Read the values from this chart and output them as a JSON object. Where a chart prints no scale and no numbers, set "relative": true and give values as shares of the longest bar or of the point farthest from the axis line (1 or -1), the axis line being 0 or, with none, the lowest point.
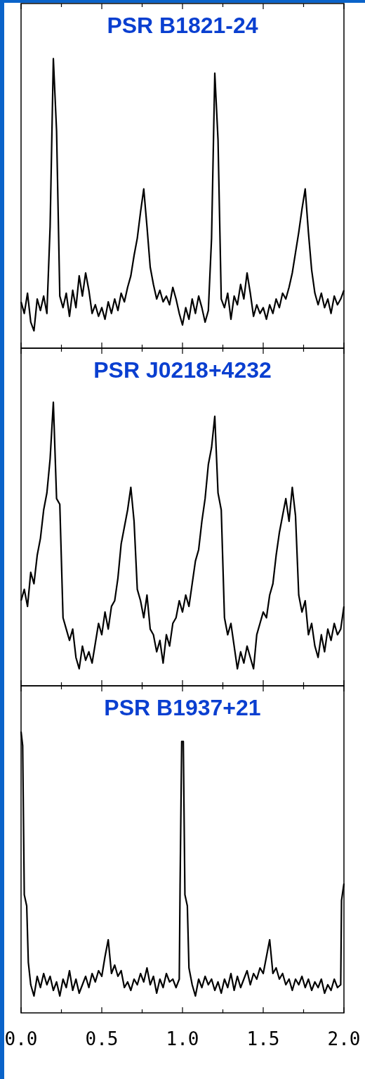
{
  "chart_data": [
    {
      "type": "line",
      "title": "PSR B1821-24",
      "relative": true,
      "xlim": [
        0,
        2
      ],
      "tick_labels": false,
      "xticks": [
        {
          "value": 0,
          "label": null
        },
        {
          "value": 0.25,
          "label": null
        },
        {
          "value": 0.5,
          "label": null
        },
        {
          "value": 0.75,
          "label": null
        },
        {
          "value": 1,
          "label": null
        },
        {
          "value": 1.25,
          "label": null
        },
        {
          "value": 1.5,
          "label": null
        },
        {
          "value": 1.75,
          "label": null
        },
        {
          "value": 2,
          "label": null
        }
      ],
      "x": [
        0,
        0.02,
        0.04,
        0.06,
        0.08,
        0.1,
        0.12,
        0.14,
        0.16,
        0.18,
        0.2,
        0.22,
        0.24,
        0.26,
        0.28,
        0.3,
        0.32,
        0.34,
        0.36,
        0.38,
        0.4,
        0.42,
        0.44,
        0.46,
        0.48,
        0.5,
        0.52,
        0.54,
        0.56,
        0.58,
        0.6,
        0.62,
        0.64,
        0.66,
        0.68,
        0.7,
        0.72,
        0.74,
        0.76,
        0.78,
        0.8,
        0.82,
        0.84,
        0.86,
        0.88,
        0.9,
        0.92,
        0.94,
        0.96,
        0.98,
        1,
        1.02,
        1.04,
        1.06,
        1.08,
        1.1,
        1.12,
        1.14,
        1.16,
        1.18,
        1.2,
        1.22,
        1.24,
        1.26,
        1.28,
        1.3,
        1.32,
        1.34,
        1.36,
        1.38,
        1.4,
        1.42,
        1.44,
        1.46,
        1.48,
        1.5,
        1.52,
        1.54,
        1.56,
        1.58,
        1.6,
        1.62,
        1.64,
        1.66,
        1.68,
        1.7,
        1.72,
        1.74,
        1.76,
        1.78,
        1.8,
        1.82,
        1.84,
        1.86,
        1.88,
        1.9,
        1.92,
        1.94,
        1.96,
        1.98,
        2
      ],
      "series": [
        {
          "color": "#000000",
          "values": [
            0.16,
            0.12,
            0.19,
            0.09,
            0.06,
            0.17,
            0.13,
            0.18,
            0.12,
            0.42,
            1.0,
            0.75,
            0.18,
            0.14,
            0.19,
            0.11,
            0.2,
            0.14,
            0.25,
            0.18,
            0.26,
            0.2,
            0.12,
            0.15,
            0.11,
            0.14,
            0.1,
            0.16,
            0.12,
            0.17,
            0.13,
            0.19,
            0.16,
            0.21,
            0.25,
            0.32,
            0.38,
            0.47,
            0.55,
            0.42,
            0.28,
            0.22,
            0.17,
            0.2,
            0.16,
            0.18,
            0.15,
            0.21,
            0.17,
            0.12,
            0.08,
            0.14,
            0.1,
            0.17,
            0.12,
            0.18,
            0.14,
            0.09,
            0.13,
            0.38,
            0.95,
            0.72,
            0.17,
            0.14,
            0.19,
            0.1,
            0.18,
            0.15,
            0.22,
            0.17,
            0.26,
            0.19,
            0.11,
            0.15,
            0.12,
            0.14,
            0.1,
            0.15,
            0.12,
            0.17,
            0.14,
            0.19,
            0.17,
            0.21,
            0.26,
            0.33,
            0.4,
            0.48,
            0.55,
            0.4,
            0.27,
            0.19,
            0.15,
            0.19,
            0.14,
            0.17,
            0.12,
            0.18,
            0.15,
            0.17,
            0.2
          ]
        }
      ]
    },
    {
      "type": "line",
      "title": "PSR J0218+4232",
      "relative": true,
      "xlim": [
        0,
        2
      ],
      "tick_labels": false,
      "xticks": [
        {
          "value": 0,
          "label": null
        },
        {
          "value": 0.25,
          "label": null
        },
        {
          "value": 0.5,
          "label": null
        },
        {
          "value": 0.75,
          "label": null
        },
        {
          "value": 1,
          "label": null
        },
        {
          "value": 1.25,
          "label": null
        },
        {
          "value": 1.5,
          "label": null
        },
        {
          "value": 1.75,
          "label": null
        },
        {
          "value": 2,
          "label": null
        }
      ],
      "x": [
        0,
        0.02,
        0.04,
        0.06,
        0.08,
        0.1,
        0.12,
        0.14,
        0.16,
        0.18,
        0.2,
        0.22,
        0.24,
        0.26,
        0.28,
        0.3,
        0.32,
        0.34,
        0.36,
        0.38,
        0.4,
        0.42,
        0.44,
        0.46,
        0.48,
        0.5,
        0.52,
        0.54,
        0.56,
        0.58,
        0.6,
        0.62,
        0.64,
        0.66,
        0.68,
        0.7,
        0.72,
        0.74,
        0.76,
        0.78,
        0.8,
        0.82,
        0.84,
        0.86,
        0.88,
        0.9,
        0.92,
        0.94,
        0.96,
        0.98,
        1,
        1.02,
        1.04,
        1.06,
        1.08,
        1.1,
        1.12,
        1.14,
        1.16,
        1.18,
        1.2,
        1.22,
        1.24,
        1.26,
        1.28,
        1.3,
        1.32,
        1.34,
        1.36,
        1.38,
        1.4,
        1.42,
        1.44,
        1.46,
        1.48,
        1.5,
        1.52,
        1.54,
        1.56,
        1.58,
        1.6,
        1.62,
        1.64,
        1.66,
        1.68,
        1.7,
        1.72,
        1.74,
        1.76,
        1.78,
        1.8,
        1.82,
        1.84,
        1.86,
        1.88,
        1.9,
        1.92,
        1.94,
        1.96,
        1.98,
        2
      ],
      "series": [
        {
          "color": "#000000",
          "values": [
            0.3,
            0.34,
            0.28,
            0.4,
            0.36,
            0.46,
            0.52,
            0.62,
            0.68,
            0.8,
            1.0,
            0.66,
            0.64,
            0.24,
            0.2,
            0.16,
            0.2,
            0.1,
            0.06,
            0.14,
            0.09,
            0.12,
            0.08,
            0.15,
            0.22,
            0.18,
            0.26,
            0.2,
            0.28,
            0.3,
            0.38,
            0.5,
            0.56,
            0.62,
            0.7,
            0.58,
            0.34,
            0.3,
            0.24,
            0.32,
            0.2,
            0.18,
            0.12,
            0.16,
            0.08,
            0.18,
            0.14,
            0.22,
            0.24,
            0.3,
            0.26,
            0.32,
            0.28,
            0.36,
            0.44,
            0.48,
            0.58,
            0.66,
            0.78,
            0.84,
            0.95,
            0.68,
            0.62,
            0.24,
            0.18,
            0.22,
            0.14,
            0.06,
            0.12,
            0.08,
            0.14,
            0.1,
            0.06,
            0.18,
            0.22,
            0.26,
            0.24,
            0.32,
            0.36,
            0.46,
            0.54,
            0.6,
            0.66,
            0.58,
            0.7,
            0.6,
            0.32,
            0.26,
            0.3,
            0.18,
            0.22,
            0.14,
            0.1,
            0.18,
            0.12,
            0.2,
            0.16,
            0.22,
            0.18,
            0.2,
            0.28
          ]
        }
      ]
    },
    {
      "type": "line",
      "title": "PSR B1937+21",
      "relative": true,
      "xlim": [
        0,
        2
      ],
      "tick_labels": "x",
      "xticks": [
        {
          "value": 0,
          "label": "0.0"
        },
        {
          "value": 0.25,
          "label": null
        },
        {
          "value": 0.5,
          "label": "0.5"
        },
        {
          "value": 0.75,
          "label": null
        },
        {
          "value": 1,
          "label": "1.0"
        },
        {
          "value": 1.25,
          "label": null
        },
        {
          "value": 1.5,
          "label": "1.5"
        },
        {
          "value": 1.75,
          "label": null
        },
        {
          "value": 2,
          "label": "2.0"
        }
      ],
      "x": [
        0,
        0.01,
        0.02,
        0.035,
        0.045,
        0.06,
        0.08,
        0.1,
        0.12,
        0.14,
        0.16,
        0.18,
        0.2,
        0.22,
        0.24,
        0.26,
        0.28,
        0.3,
        0.32,
        0.34,
        0.36,
        0.38,
        0.4,
        0.42,
        0.44,
        0.46,
        0.48,
        0.5,
        0.52,
        0.54,
        0.56,
        0.58,
        0.6,
        0.62,
        0.64,
        0.66,
        0.68,
        0.7,
        0.72,
        0.74,
        0.76,
        0.78,
        0.8,
        0.82,
        0.84,
        0.86,
        0.88,
        0.9,
        0.92,
        0.94,
        0.96,
        0.98,
        0.985,
        0.995,
        1.005,
        1.015,
        1.03,
        1.04,
        1.06,
        1.08,
        1.1,
        1.12,
        1.14,
        1.16,
        1.18,
        1.2,
        1.22,
        1.24,
        1.26,
        1.28,
        1.3,
        1.32,
        1.34,
        1.36,
        1.38,
        1.4,
        1.42,
        1.44,
        1.46,
        1.48,
        1.5,
        1.52,
        1.54,
        1.56,
        1.58,
        1.6,
        1.62,
        1.64,
        1.66,
        1.68,
        1.7,
        1.72,
        1.74,
        1.76,
        1.78,
        1.8,
        1.82,
        1.84,
        1.86,
        1.88,
        1.9,
        1.92,
        1.94,
        1.96,
        1.98,
        1.985,
        2
      ],
      "series": [
        {
          "color": "#000000",
          "values": [
            1.0,
            0.95,
            0.42,
            0.38,
            0.18,
            0.1,
            0.06,
            0.13,
            0.09,
            0.14,
            0.1,
            0.13,
            0.08,
            0.11,
            0.06,
            0.12,
            0.09,
            0.15,
            0.08,
            0.12,
            0.07,
            0.1,
            0.13,
            0.09,
            0.14,
            0.11,
            0.15,
            0.13,
            0.2,
            0.26,
            0.14,
            0.17,
            0.13,
            0.15,
            0.09,
            0.11,
            0.08,
            0.12,
            0.1,
            0.14,
            0.11,
            0.16,
            0.1,
            0.13,
            0.07,
            0.12,
            0.09,
            0.14,
            0.11,
            0.12,
            0.09,
            0.12,
            0.45,
            0.965,
            0.965,
            0.42,
            0.38,
            0.16,
            0.1,
            0.06,
            0.12,
            0.09,
            0.13,
            0.1,
            0.12,
            0.08,
            0.11,
            0.07,
            0.12,
            0.09,
            0.14,
            0.08,
            0.13,
            0.09,
            0.12,
            0.15,
            0.1,
            0.14,
            0.12,
            0.16,
            0.14,
            0.2,
            0.26,
            0.14,
            0.16,
            0.12,
            0.14,
            0.1,
            0.12,
            0.08,
            0.12,
            0.1,
            0.13,
            0.09,
            0.12,
            0.08,
            0.11,
            0.09,
            0.12,
            0.07,
            0.1,
            0.08,
            0.12,
            0.09,
            0.1,
            0.4,
            0.46
          ]
        }
      ]
    }
  ]
}
